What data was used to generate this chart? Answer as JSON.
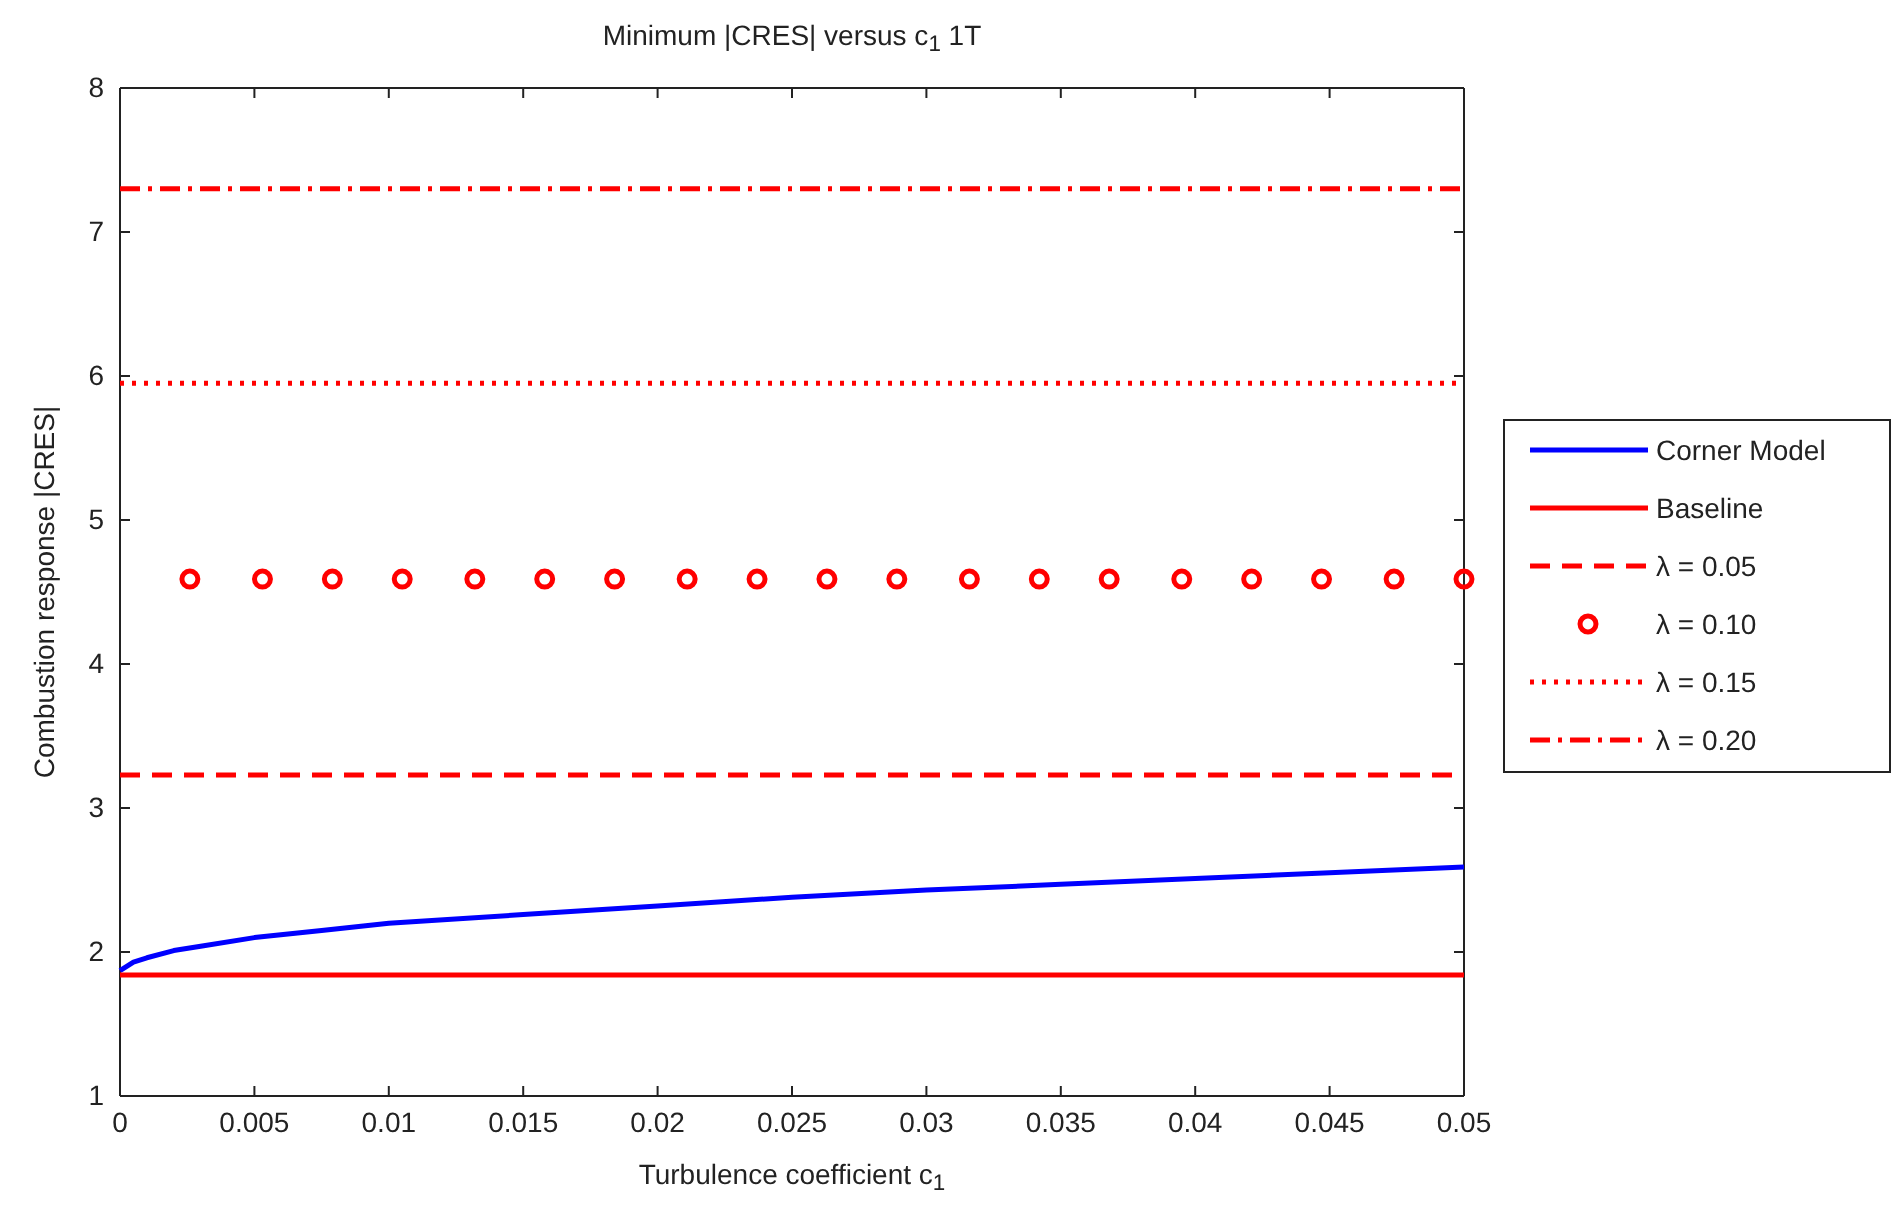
{
  "chart_data": {
    "type": "line",
    "title": "Minimum |CRES| versus c$_{1}$ 1T",
    "xlabel": "Turbulence coefficient c$_{1}$",
    "ylabel": "Combustion response |CRES|",
    "xlim": [
      0,
      0.05
    ],
    "ylim": [
      1,
      8
    ],
    "xticks": [
      0,
      0.005,
      0.01,
      0.015,
      0.02,
      0.025,
      0.03,
      0.035,
      0.04,
      0.045,
      0.05
    ],
    "yticks": [
      1,
      2,
      3,
      4,
      5,
      6,
      7,
      8
    ],
    "grid": false,
    "legend": "right",
    "series": [
      {
        "name": "Corner Model",
        "color": "#0000ff",
        "line_style": "solid",
        "x": [
          0,
          0.0005,
          0.001,
          0.002,
          0.003,
          0.005,
          0.0075,
          0.01,
          0.015,
          0.02,
          0.025,
          0.03,
          0.035,
          0.04,
          0.045,
          0.05
        ],
        "values": [
          1.87,
          1.93,
          1.96,
          2.01,
          2.04,
          2.1,
          2.15,
          2.2,
          2.26,
          2.32,
          2.38,
          2.43,
          2.47,
          2.51,
          2.55,
          2.59
        ]
      },
      {
        "name": "Baseline",
        "color": "#ff0000",
        "line_style": "solid",
        "x": [
          0,
          0.05
        ],
        "values": [
          1.84,
          1.84
        ]
      },
      {
        "name": "λ = 0.05",
        "color": "#ff0000",
        "line_style": "dashed",
        "x": [
          0,
          0.05
        ],
        "values": [
          3.23,
          3.23
        ]
      },
      {
        "name": "λ = 0.10",
        "color": "#ff0000",
        "type": "scatter",
        "marker": "circle",
        "x": [
          0.0026,
          0.0053,
          0.0079,
          0.0105,
          0.0132,
          0.0158,
          0.0184,
          0.0211,
          0.0237,
          0.0263,
          0.0289,
          0.0316,
          0.0342,
          0.0368,
          0.0395,
          0.0421,
          0.0447,
          0.0474,
          0.05
        ],
        "values": [
          4.59,
          4.59,
          4.59,
          4.59,
          4.59,
          4.59,
          4.59,
          4.59,
          4.59,
          4.59,
          4.59,
          4.59,
          4.59,
          4.59,
          4.59,
          4.59,
          4.59,
          4.59,
          4.59
        ]
      },
      {
        "name": "λ = 0.15",
        "color": "#ff0000",
        "line_style": "dotted",
        "x": [
          0,
          0.05
        ],
        "values": [
          5.95,
          5.95
        ]
      },
      {
        "name": "λ = 0.20",
        "color": "#ff0000",
        "line_style": "dashdot",
        "x": [
          0,
          0.05
        ],
        "values": [
          7.3,
          7.3
        ]
      }
    ]
  }
}
